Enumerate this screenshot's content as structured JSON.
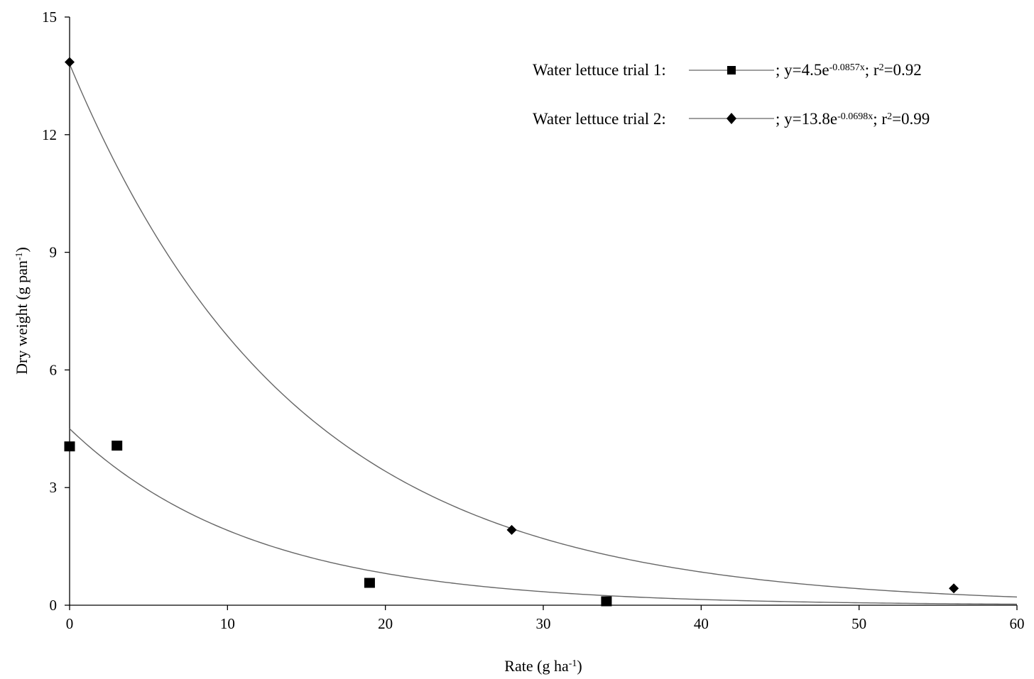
{
  "chart_data": {
    "type": "scatter",
    "xlabel": "Rate (g ha-1)",
    "ylabel": "Dry weight (g pan-1)",
    "xlim": [
      0,
      60
    ],
    "ylim": [
      0,
      15
    ],
    "xticks": [
      0,
      10,
      20,
      30,
      40,
      50,
      60
    ],
    "yticks": [
      0,
      3,
      6,
      9,
      12,
      15
    ],
    "grid": false,
    "legend_position": "top-right",
    "series": [
      {
        "name": "Water lettuce trial 1",
        "marker": "square",
        "color": "#000000",
        "points": [
          {
            "x": 0,
            "y": 4.05
          },
          {
            "x": 3,
            "y": 4.07
          },
          {
            "x": 19,
            "y": 0.57
          },
          {
            "x": 34,
            "y": 0.1
          }
        ],
        "fit": {
          "a": 4.5,
          "b": -0.0857,
          "r2": 0.92
        },
        "equation_label": "; y=4.5e-0.0857x; r2=0.92"
      },
      {
        "name": "Water lettuce trial 2",
        "marker": "diamond",
        "color": "#000000",
        "points": [
          {
            "x": 0,
            "y": 13.85
          },
          {
            "x": 28,
            "y": 1.92
          },
          {
            "x": 56,
            "y": 0.43
          }
        ],
        "fit": {
          "a": 13.8,
          "b": -0.0698,
          "r2": 0.99
        },
        "equation_label": "; y=13.8e-0.0698x; r2=0.99"
      }
    ],
    "fit_line_color": "#666666"
  }
}
